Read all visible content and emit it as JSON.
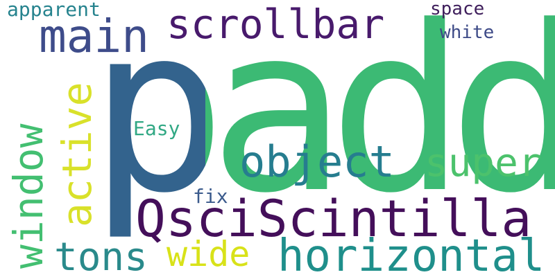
{
  "words": [
    {
      "text": "padd",
      "color": "#3b5f8f"
    },
    {
      "text": "QsciScintilla",
      "color": "#440f5a"
    },
    {
      "text": "horizontal",
      "color": "#1f8f8b"
    },
    {
      "text": "object",
      "color": "#267d8f"
    },
    {
      "text": "scrollbar",
      "color": "#481a6c"
    },
    {
      "text": "window",
      "color": "#43bf71"
    },
    {
      "text": "active",
      "color": "#d9e12a"
    },
    {
      "text": "main",
      "color": "#3e4c8a"
    },
    {
      "text": "super",
      "color": "#4cc26c"
    },
    {
      "text": "tons",
      "color": "#2a8a8b"
    },
    {
      "text": "wide",
      "color": "#d8e219"
    },
    {
      "text": "apparent",
      "color": "#26838e"
    },
    {
      "text": "space",
      "color": "#3f1f5c"
    },
    {
      "text": "white",
      "color": "#3d4a87"
    },
    {
      "text": "Easy",
      "color": "#31a884"
    },
    {
      "text": "fix",
      "color": "#3a5a8c"
    }
  ]
}
